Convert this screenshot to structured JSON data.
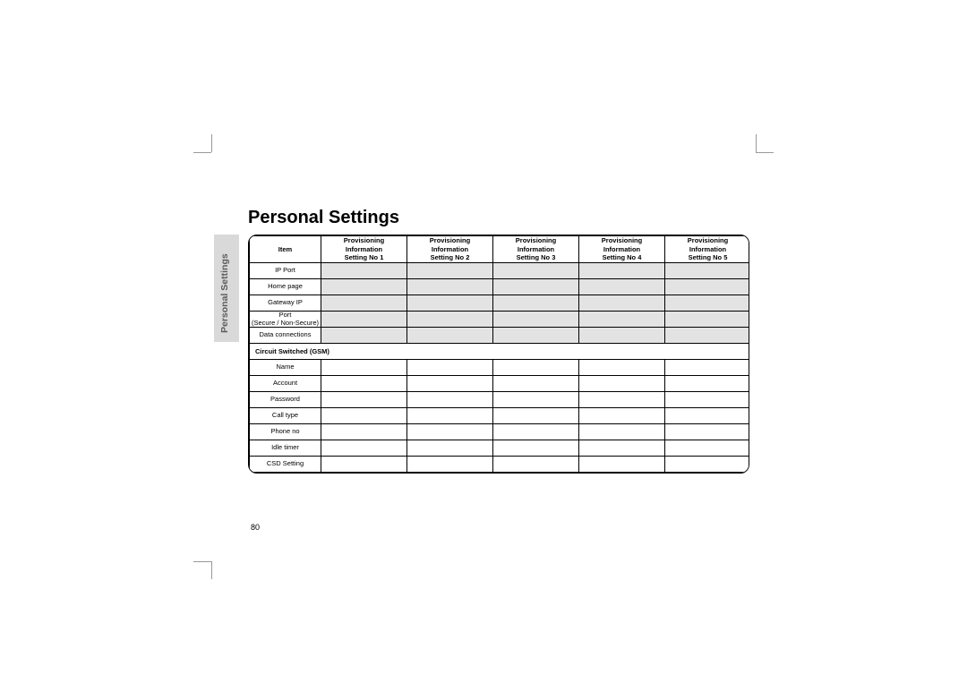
{
  "page_number": "80",
  "heading": "Personal Settings",
  "sidebar_label": "Personal Settings",
  "columns": {
    "item": "Item",
    "headers": [
      {
        "l1": "Provisioning",
        "l2": "Information",
        "l3": "Setting No 1"
      },
      {
        "l1": "Provisioning",
        "l2": "Information",
        "l3": "Setting No 2"
      },
      {
        "l1": "Provisioning",
        "l2": "Information",
        "l3": "Setting No 3"
      },
      {
        "l1": "Provisioning",
        "l2": "Information",
        "l3": "Setting No 4"
      },
      {
        "l1": "Provisioning",
        "l2": "Information",
        "l3": "Setting No 5"
      }
    ]
  },
  "section1_rows": [
    "IP Port",
    "Home page",
    "Gateway IP",
    "Port\n(Secure / Non-Secure)",
    "Data connections"
  ],
  "section2_title": "Circuit Switched (GSM)",
  "section2_rows": [
    "Name",
    "Account",
    "Password",
    "Call type",
    "Phone no",
    "Idle timer",
    "CSD Setting"
  ],
  "style": {
    "shaded_fill": "#e3e3e3",
    "border_color": "#000000",
    "sidebar_fill": "#d9d9d9",
    "sidebar_text": "#5a5a5a",
    "heading_fontsize": 20,
    "cell_fontsize": 7.5,
    "table_border_radius": 10
  }
}
